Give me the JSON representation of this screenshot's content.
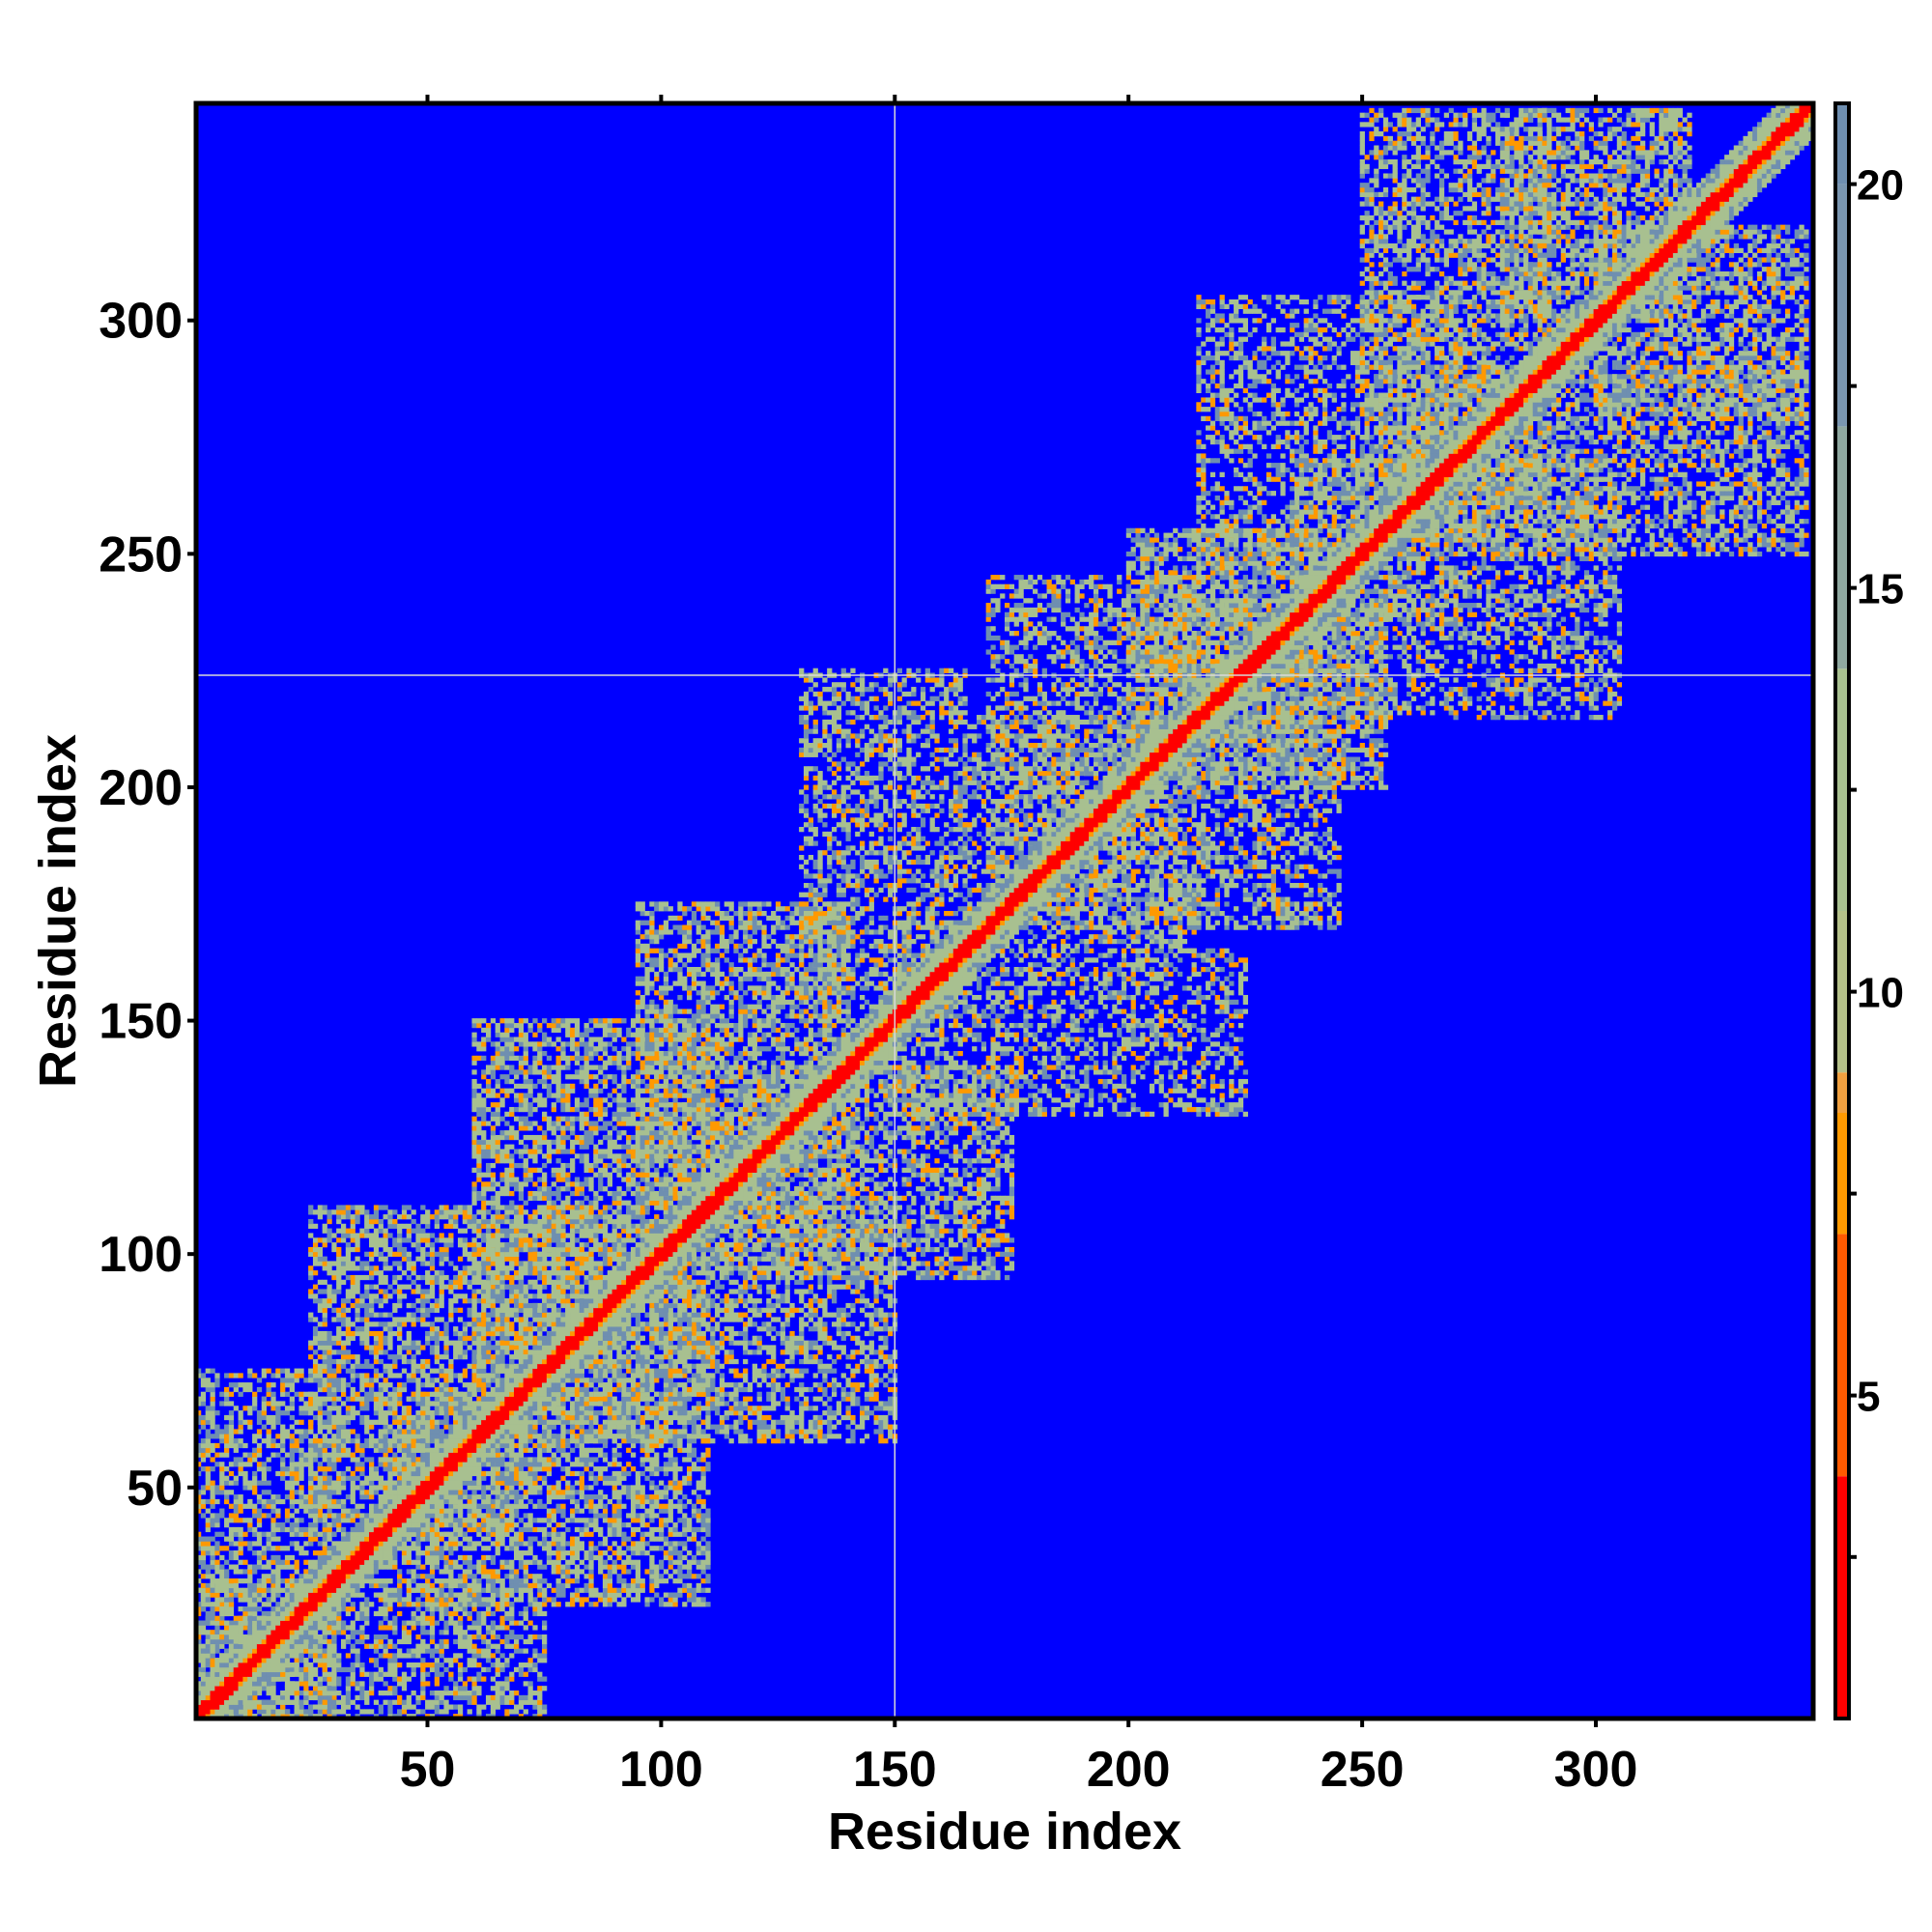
{
  "chart_data": {
    "type": "heatmap",
    "title": "",
    "xlabel": "Residue index",
    "ylabel": "Residue index",
    "n_residues": 346,
    "xlim": [
      1,
      346
    ],
    "ylim": [
      1,
      346
    ],
    "x_ticks": [
      50,
      100,
      150,
      200,
      250,
      300
    ],
    "y_ticks": [
      50,
      100,
      150,
      200,
      250,
      300
    ],
    "colorbar": {
      "ticks": [
        5,
        10,
        15,
        20
      ],
      "range": [
        1,
        21
      ],
      "colors": {
        "near": "#ff0000",
        "mid_low": "#ff9900",
        "mid": "#a8c090",
        "far_contact": "#6f8fb0",
        "background": "#0000ff"
      },
      "scale_stops": [
        {
          "value": 1,
          "color": "#ff0000"
        },
        {
          "value": 4,
          "color": "#ff5a00"
        },
        {
          "value": 7,
          "color": "#ff9900"
        },
        {
          "value": 8.5,
          "color": "#f0a040"
        },
        {
          "value": 9,
          "color": "#b4c089"
        },
        {
          "value": 11,
          "color": "#a8c090"
        },
        {
          "value": 14,
          "color": "#8fa8a0"
        },
        {
          "value": 17,
          "color": "#7a96b0"
        },
        {
          "value": 20,
          "color": "#6f8fb0"
        },
        {
          "value": 21,
          "color": "#0000ff"
        }
      ]
    },
    "crosshair": {
      "x": 150,
      "y": 224
    },
    "diagonal_band": {
      "core_width": 2,
      "band_width": 7
    },
    "contact_regions": [
      {
        "x": [
          1,
          30
        ],
        "y": [
          1,
          75
        ],
        "density": 0.55
      },
      {
        "x": [
          1,
          75
        ],
        "y": [
          1,
          30
        ],
        "density": 0.55
      },
      {
        "x": [
          25,
          70
        ],
        "y": [
          40,
          110
        ],
        "density": 0.6
      },
      {
        "x": [
          40,
          110
        ],
        "y": [
          25,
          70
        ],
        "density": 0.6
      },
      {
        "x": [
          60,
          110
        ],
        "y": [
          70,
          150
        ],
        "density": 0.6
      },
      {
        "x": [
          70,
          150
        ],
        "y": [
          60,
          110
        ],
        "density": 0.55
      },
      {
        "x": [
          95,
          140
        ],
        "y": [
          110,
          175
        ],
        "density": 0.6
      },
      {
        "x": [
          110,
          175
        ],
        "y": [
          95,
          140
        ],
        "density": 0.55
      },
      {
        "x": [
          130,
          165
        ],
        "y": [
          150,
          225
        ],
        "density": 0.5
      },
      {
        "x": [
          150,
          225
        ],
        "y": [
          130,
          165
        ],
        "density": 0.45
      },
      {
        "x": [
          170,
          215
        ],
        "y": [
          165,
          245
        ],
        "density": 0.45
      },
      {
        "x": [
          165,
          245
        ],
        "y": [
          170,
          215
        ],
        "density": 0.45
      },
      {
        "x": [
          200,
          240
        ],
        "y": [
          210,
          255
        ],
        "density": 0.6
      },
      {
        "x": [
          210,
          255
        ],
        "y": [
          200,
          240
        ],
        "density": 0.6
      },
      {
        "x": [
          215,
          270
        ],
        "y": [
          235,
          305
        ],
        "density": 0.45
      },
      {
        "x": [
          235,
          305
        ],
        "y": [
          215,
          270
        ],
        "density": 0.45
      },
      {
        "x": [
          250,
          290
        ],
        "y": [
          260,
          345
        ],
        "density": 0.55
      },
      {
        "x": [
          260,
          345
        ],
        "y": [
          250,
          290
        ],
        "density": 0.55
      },
      {
        "x": [
          280,
          320
        ],
        "y": [
          300,
          345
        ],
        "density": 0.6
      },
      {
        "x": [
          300,
          345
        ],
        "y": [
          280,
          320
        ],
        "density": 0.6
      }
    ]
  }
}
